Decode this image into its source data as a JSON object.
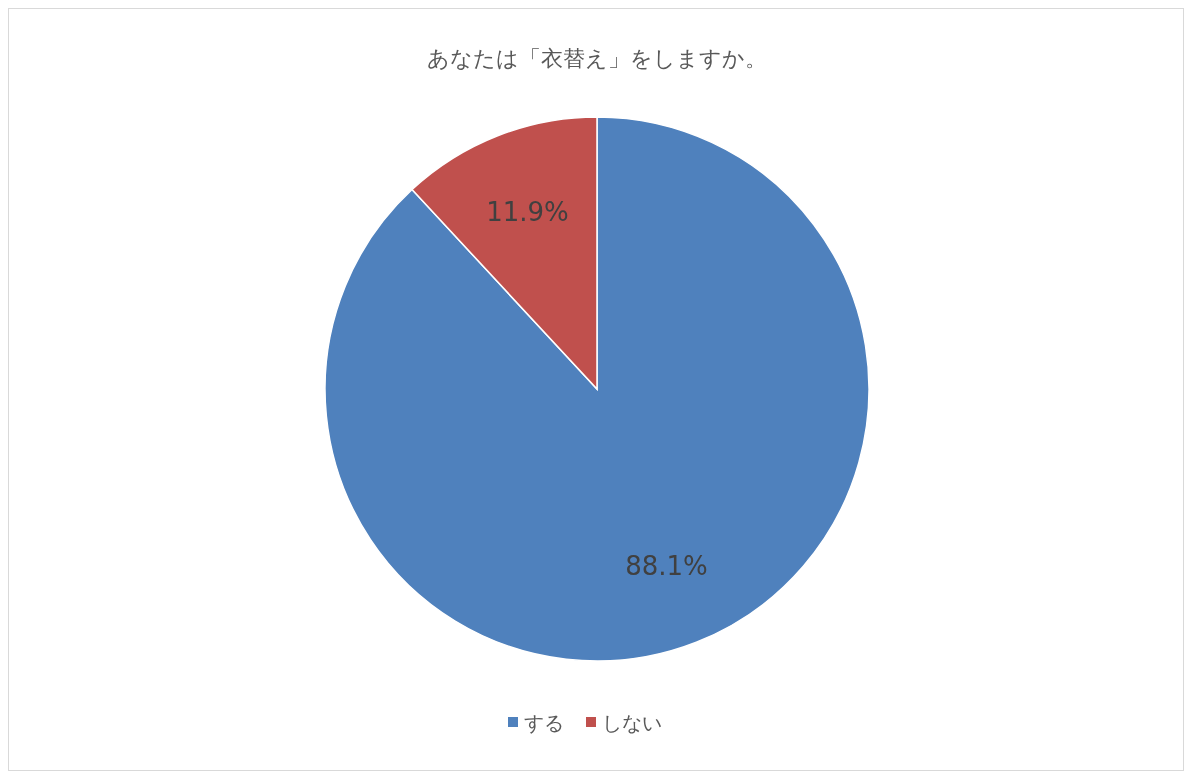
{
  "chart_data": {
    "type": "pie",
    "title": "あなたは「衣替え」をしますか。",
    "categories": [
      "する",
      "しない"
    ],
    "values": [
      88.1,
      11.9
    ],
    "colors": [
      "#4f81bd",
      "#c0504d"
    ],
    "value_labels": [
      "88.1%",
      "11.9%"
    ],
    "legend": "bottom"
  }
}
